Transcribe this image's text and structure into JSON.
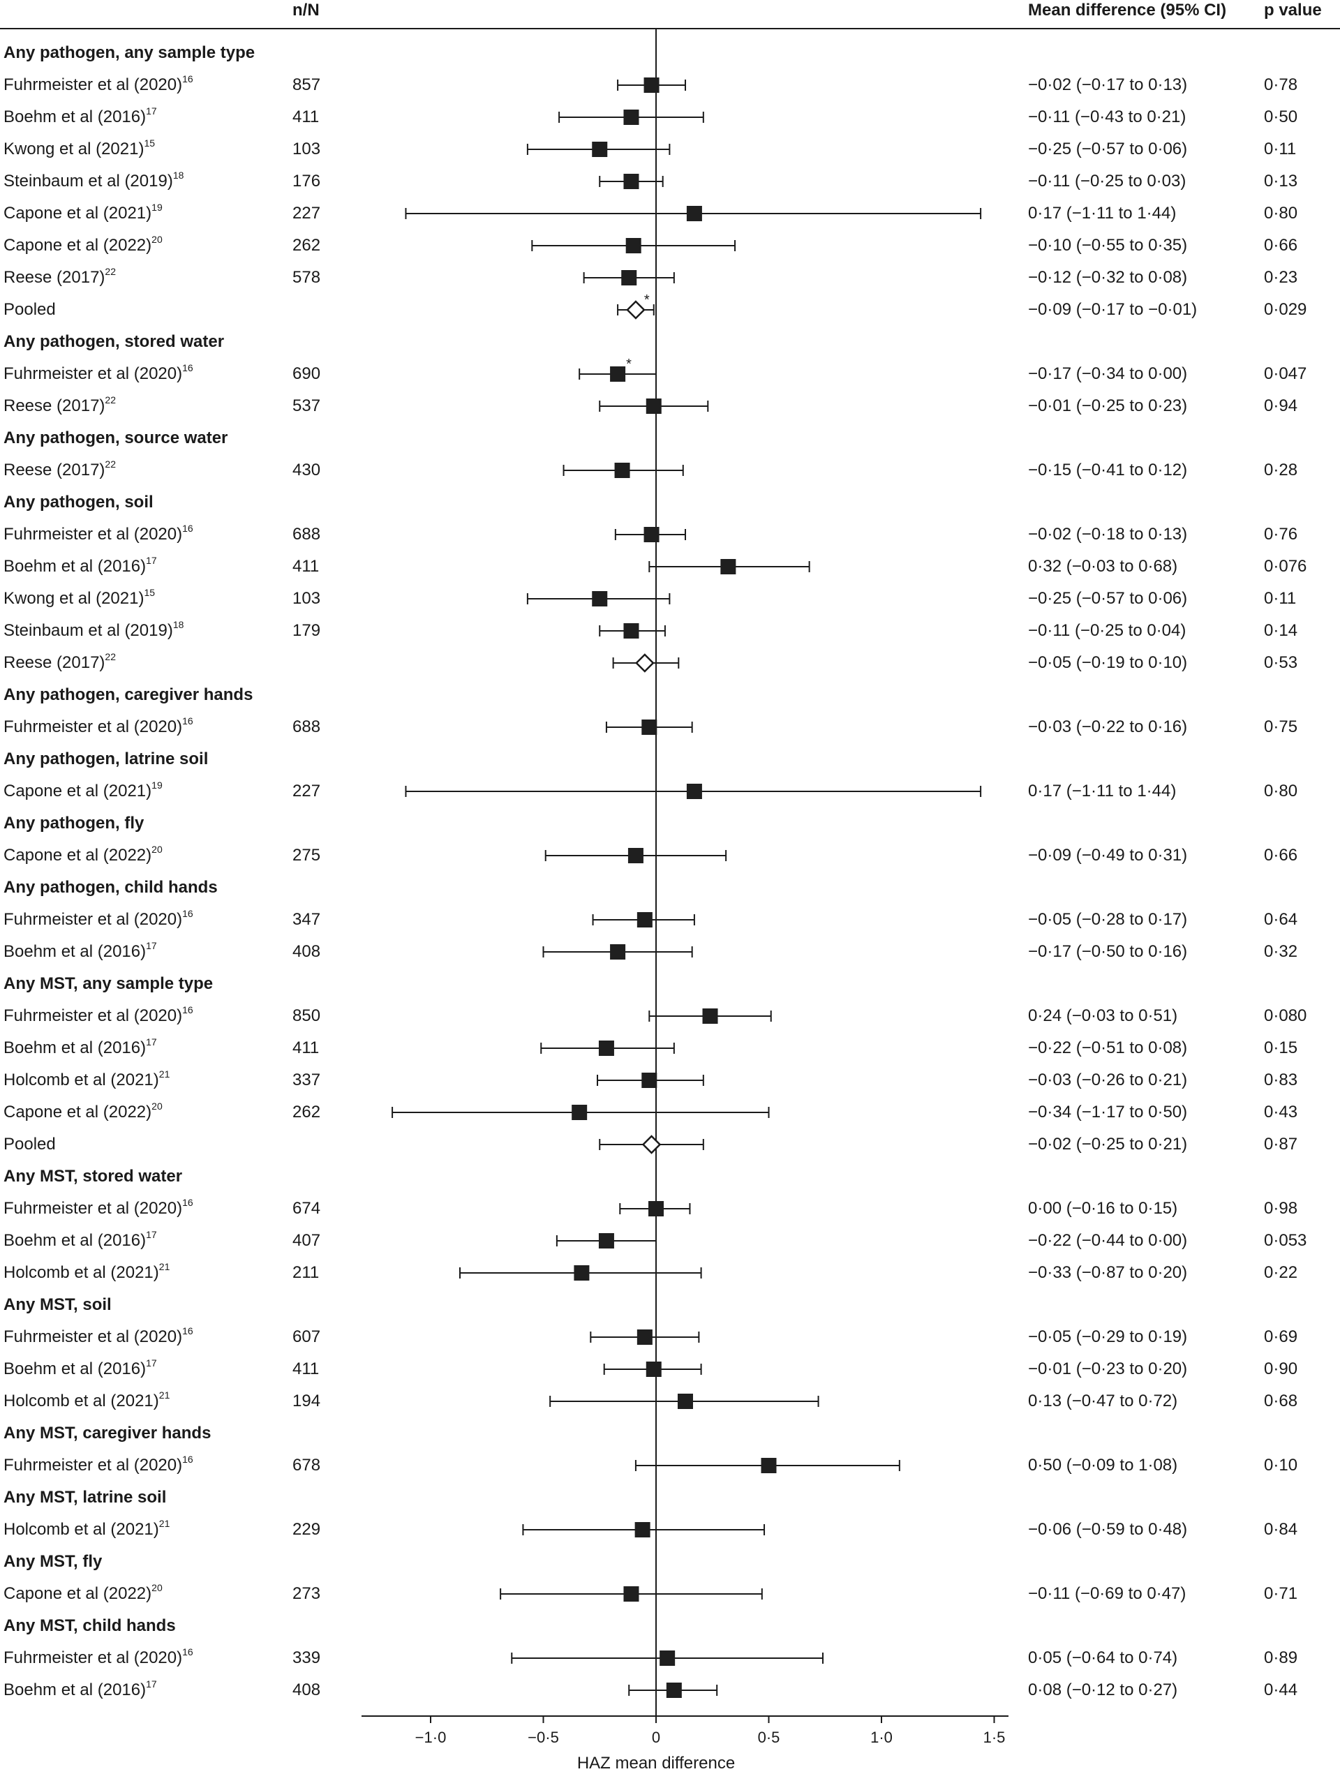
{
  "headers": {
    "n": "n/N",
    "ci": "Mean difference (95% CI)",
    "p": "p value"
  },
  "chart_data": {
    "type": "forest",
    "xlabel": "HAZ mean difference",
    "xlim": [
      -1.3,
      1.55
    ],
    "xticks": [
      -1.0,
      -0.5,
      0,
      0.5,
      1.0,
      1.5
    ],
    "xtick_labels": [
      "−1·0",
      "−0·5",
      "0",
      "0·5",
      "1·0",
      "1·5"
    ],
    "reference_line": 0,
    "rows": [
      {
        "type": "group",
        "label": "Any pathogen, any sample type"
      },
      {
        "type": "study",
        "label": "Fuhrmeister et al (2020)",
        "ref": "16",
        "n": "857",
        "est": -0.02,
        "lo": -0.17,
        "hi": 0.13,
        "ci_text": "−0·02 (−0·17 to 0·13)",
        "p": "0·78",
        "marker": "square"
      },
      {
        "type": "study",
        "label": "Boehm et al (2016)",
        "ref": "17",
        "n": "411",
        "est": -0.11,
        "lo": -0.43,
        "hi": 0.21,
        "ci_text": "−0·11 (−0·43 to 0·21)",
        "p": "0·50",
        "marker": "square"
      },
      {
        "type": "study",
        "label": "Kwong et al (2021)",
        "ref": "15",
        "n": "103",
        "est": -0.25,
        "lo": -0.57,
        "hi": 0.06,
        "ci_text": "−0·25 (−0·57 to 0·06)",
        "p": "0·11",
        "marker": "square"
      },
      {
        "type": "study",
        "label": "Steinbaum et al (2019)",
        "ref": "18",
        "n": "176",
        "est": -0.11,
        "lo": -0.25,
        "hi": 0.03,
        "ci_text": "−0·11 (−0·25 to 0·03)",
        "p": "0·13",
        "marker": "square"
      },
      {
        "type": "study",
        "label": "Capone et al (2021)",
        "ref": "19",
        "n": "227",
        "est": 0.17,
        "lo": -1.11,
        "hi": 1.44,
        "ci_text": "0·17 (−1·11 to 1·44)",
        "p": "0·80",
        "marker": "square"
      },
      {
        "type": "study",
        "label": "Capone et al (2022)",
        "ref": "20",
        "n": "262",
        "est": -0.1,
        "lo": -0.55,
        "hi": 0.35,
        "ci_text": "−0·10 (−0·55 to 0·35)",
        "p": "0·66",
        "marker": "square"
      },
      {
        "type": "study",
        "label": "Reese (2017)",
        "ref": "22",
        "n": "578",
        "est": -0.12,
        "lo": -0.32,
        "hi": 0.08,
        "ci_text": "−0·12 (−0·32 to 0·08)",
        "p": "0·23",
        "marker": "square"
      },
      {
        "type": "study",
        "label": "Pooled",
        "ref": "",
        "n": "",
        "est": -0.09,
        "lo": -0.17,
        "hi": -0.01,
        "ci_text": "−0·09 (−0·17 to −0·01)",
        "p": "0·029",
        "marker": "diamond",
        "star": "*"
      },
      {
        "type": "group",
        "label": "Any pathogen, stored water"
      },
      {
        "type": "study",
        "label": "Fuhrmeister et al (2020)",
        "ref": "16",
        "n": "690",
        "est": -0.17,
        "lo": -0.34,
        "hi": 0.0,
        "ci_text": "−0·17 (−0·34 to 0·00)",
        "p": "0·047",
        "marker": "square",
        "star": "*"
      },
      {
        "type": "study",
        "label": "Reese (2017)",
        "ref": "22",
        "n": "537",
        "est": -0.01,
        "lo": -0.25,
        "hi": 0.23,
        "ci_text": "−0·01 (−0·25 to 0·23)",
        "p": "0·94",
        "marker": "square"
      },
      {
        "type": "group",
        "label": "Any pathogen, source water"
      },
      {
        "type": "study",
        "label": "Reese (2017)",
        "ref": "22",
        "n": "430",
        "est": -0.15,
        "lo": -0.41,
        "hi": 0.12,
        "ci_text": "−0·15 (−0·41 to 0·12)",
        "p": "0·28",
        "marker": "square"
      },
      {
        "type": "group",
        "label": "Any pathogen, soil"
      },
      {
        "type": "study",
        "label": "Fuhrmeister et al (2020)",
        "ref": "16",
        "n": "688",
        "est": -0.02,
        "lo": -0.18,
        "hi": 0.13,
        "ci_text": "−0·02 (−0·18 to 0·13)",
        "p": "0·76",
        "marker": "square"
      },
      {
        "type": "study",
        "label": "Boehm et al (2016)",
        "ref": "17",
        "n": "411",
        "est": 0.32,
        "lo": -0.03,
        "hi": 0.68,
        "ci_text": "0·32 (−0·03 to 0·68)",
        "p": "0·076",
        "marker": "square"
      },
      {
        "type": "study",
        "label": "Kwong et al (2021)",
        "ref": "15",
        "n": "103",
        "est": -0.25,
        "lo": -0.57,
        "hi": 0.06,
        "ci_text": "−0·25 (−0·57 to 0·06)",
        "p": "0·11",
        "marker": "square"
      },
      {
        "type": "study",
        "label": "Steinbaum et al (2019)",
        "ref": "18",
        "n": "179",
        "est": -0.11,
        "lo": -0.25,
        "hi": 0.04,
        "ci_text": "−0·11 (−0·25 to 0·04)",
        "p": "0·14",
        "marker": "square"
      },
      {
        "type": "study",
        "label": "Reese (2017)",
        "ref": "22",
        "n": "",
        "est": -0.05,
        "lo": -0.19,
        "hi": 0.1,
        "ci_text": "−0·05 (−0·19 to 0·10)",
        "p": "0·53",
        "marker": "diamond"
      },
      {
        "type": "group",
        "label": "Any pathogen, caregiver hands"
      },
      {
        "type": "study",
        "label": "Fuhrmeister et al (2020)",
        "ref": "16",
        "n": "688",
        "est": -0.03,
        "lo": -0.22,
        "hi": 0.16,
        "ci_text": "−0·03 (−0·22 to 0·16)",
        "p": "0·75",
        "marker": "square"
      },
      {
        "type": "group",
        "label": "Any pathogen, latrine soil"
      },
      {
        "type": "study",
        "label": "Capone et al (2021)",
        "ref": "19",
        "n": "227",
        "est": 0.17,
        "lo": -1.11,
        "hi": 1.44,
        "ci_text": "0·17 (−1·11 to 1·44)",
        "p": "0·80",
        "marker": "square"
      },
      {
        "type": "group",
        "label": "Any pathogen, fly"
      },
      {
        "type": "study",
        "label": "Capone et al (2022)",
        "ref": "20",
        "n": "275",
        "est": -0.09,
        "lo": -0.49,
        "hi": 0.31,
        "ci_text": "−0·09 (−0·49 to 0·31)",
        "p": "0·66",
        "marker": "square"
      },
      {
        "type": "group",
        "label": "Any pathogen, child hands"
      },
      {
        "type": "study",
        "label": "Fuhrmeister et al (2020)",
        "ref": "16",
        "n": "347",
        "est": -0.05,
        "lo": -0.28,
        "hi": 0.17,
        "ci_text": "−0·05 (−0·28 to 0·17)",
        "p": "0·64",
        "marker": "square"
      },
      {
        "type": "study",
        "label": "Boehm et al (2016)",
        "ref": "17",
        "n": "408",
        "est": -0.17,
        "lo": -0.5,
        "hi": 0.16,
        "ci_text": "−0·17 (−0·50 to 0·16)",
        "p": "0·32",
        "marker": "square"
      },
      {
        "type": "group",
        "label": "Any MST, any sample type"
      },
      {
        "type": "study",
        "label": "Fuhrmeister et al (2020)",
        "ref": "16",
        "n": "850",
        "est": 0.24,
        "lo": -0.03,
        "hi": 0.51,
        "ci_text": "0·24 (−0·03 to 0·51)",
        "p": "0·080",
        "marker": "square"
      },
      {
        "type": "study",
        "label": "Boehm et al (2016)",
        "ref": "17",
        "n": "411",
        "est": -0.22,
        "lo": -0.51,
        "hi": 0.08,
        "ci_text": "−0·22 (−0·51 to 0·08)",
        "p": "0·15",
        "marker": "square"
      },
      {
        "type": "study",
        "label": "Holcomb et al (2021)",
        "ref": "21",
        "n": "337",
        "est": -0.03,
        "lo": -0.26,
        "hi": 0.21,
        "ci_text": "−0·03 (−0·26 to 0·21)",
        "p": "0·83",
        "marker": "square"
      },
      {
        "type": "study",
        "label": "Capone et al (2022)",
        "ref": "20",
        "n": "262",
        "est": -0.34,
        "lo": -1.17,
        "hi": 0.5,
        "ci_text": "−0·34 (−1·17 to 0·50)",
        "p": "0·43",
        "marker": "square"
      },
      {
        "type": "study",
        "label": "Pooled",
        "ref": "",
        "n": "",
        "est": -0.02,
        "lo": -0.25,
        "hi": 0.21,
        "ci_text": "−0·02 (−0·25 to 0·21)",
        "p": "0·87",
        "marker": "diamond"
      },
      {
        "type": "group",
        "label": "Any MST, stored water"
      },
      {
        "type": "study",
        "label": "Fuhrmeister et al (2020)",
        "ref": "16",
        "n": "674",
        "est": 0.0,
        "lo": -0.16,
        "hi": 0.15,
        "ci_text": "0·00 (−0·16 to 0·15)",
        "p": "0·98",
        "marker": "square"
      },
      {
        "type": "study",
        "label": "Boehm et al (2016)",
        "ref": "17",
        "n": "407",
        "est": -0.22,
        "lo": -0.44,
        "hi": 0.0,
        "ci_text": "−0·22 (−0·44 to 0·00)",
        "p": "0·053",
        "marker": "square"
      },
      {
        "type": "study",
        "label": "Holcomb et al (2021)",
        "ref": "21",
        "n": "211",
        "est": -0.33,
        "lo": -0.87,
        "hi": 0.2,
        "ci_text": "−0·33 (−0·87 to 0·20)",
        "p": "0·22",
        "marker": "square"
      },
      {
        "type": "group",
        "label": "Any MST, soil"
      },
      {
        "type": "study",
        "label": "Fuhrmeister et al (2020)",
        "ref": "16",
        "n": "607",
        "est": -0.05,
        "lo": -0.29,
        "hi": 0.19,
        "ci_text": "−0·05 (−0·29 to 0·19)",
        "p": "0·69",
        "marker": "square"
      },
      {
        "type": "study",
        "label": "Boehm et al (2016)",
        "ref": "17",
        "n": "411",
        "est": -0.01,
        "lo": -0.23,
        "hi": 0.2,
        "ci_text": "−0·01 (−0·23 to 0·20)",
        "p": "0·90",
        "marker": "square"
      },
      {
        "type": "study",
        "label": "Holcomb et al (2021)",
        "ref": "21",
        "n": "194",
        "est": 0.13,
        "lo": -0.47,
        "hi": 0.72,
        "ci_text": "0·13 (−0·47 to 0·72)",
        "p": "0·68",
        "marker": "square"
      },
      {
        "type": "group",
        "label": "Any MST, caregiver hands"
      },
      {
        "type": "study",
        "label": "Fuhrmeister et al (2020)",
        "ref": "16",
        "n": "678",
        "est": 0.5,
        "lo": -0.09,
        "hi": 1.08,
        "ci_text": "0·50 (−0·09 to 1·08)",
        "p": "0·10",
        "marker": "square"
      },
      {
        "type": "group",
        "label": "Any MST, latrine soil"
      },
      {
        "type": "study",
        "label": "Holcomb et al (2021)",
        "ref": "21",
        "n": "229",
        "est": -0.06,
        "lo": -0.59,
        "hi": 0.48,
        "ci_text": "−0·06 (−0·59 to 0·48)",
        "p": "0·84",
        "marker": "square"
      },
      {
        "type": "group",
        "label": "Any MST, fly"
      },
      {
        "type": "study",
        "label": "Capone et al (2022)",
        "ref": "20",
        "n": "273",
        "est": -0.11,
        "lo": -0.69,
        "hi": 0.47,
        "ci_text": "−0·11 (−0·69 to 0·47)",
        "p": "0·71",
        "marker": "square"
      },
      {
        "type": "group",
        "label": "Any MST, child hands"
      },
      {
        "type": "study",
        "label": "Fuhrmeister et al (2020)",
        "ref": "16",
        "n": "339",
        "est": 0.05,
        "lo": -0.64,
        "hi": 0.74,
        "ci_text": "0·05 (−0·64 to 0·74)",
        "p": "0·89",
        "marker": "square"
      },
      {
        "type": "study",
        "label": "Boehm et al (2016)",
        "ref": "17",
        "n": "408",
        "est": 0.08,
        "lo": -0.12,
        "hi": 0.27,
        "ci_text": "0·08 (−0·12 to 0·27)",
        "p": "0·44",
        "marker": "square"
      }
    ]
  }
}
